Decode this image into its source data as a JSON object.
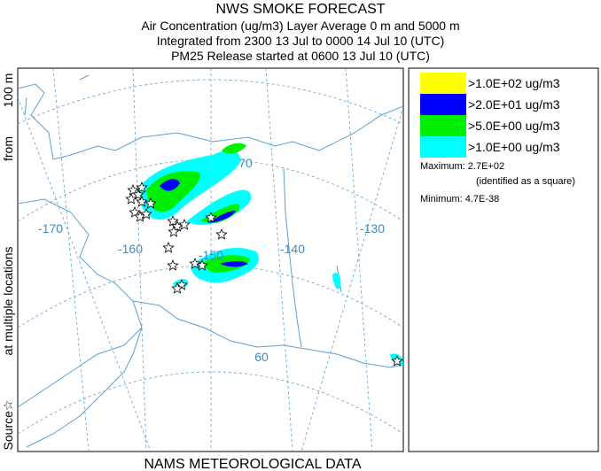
{
  "header": {
    "title": "NWS SMOKE FORECAST",
    "lines": [
      "Air Concentration (ug/m3) Layer Average    0 m and  5000 m",
      "Integrated from 2300 13 Jul to 0000 14 Jul 10 (UTC)",
      "PM25 Release started at 0600 13 Jul 10 (UTC)"
    ]
  },
  "legend": {
    "entries": [
      {
        "label": ">1.0E+02 ug/m3",
        "color": "#ffff00"
      },
      {
        "label": ">2.0E+01 ug/m3",
        "color": "#0000ff"
      },
      {
        "label": ">5.0E+00 ug/m3",
        "color": "#00ee00"
      },
      {
        "label": ">1.0E+00 ug/m3",
        "color": "#00ffff"
      }
    ]
  },
  "stats": {
    "maximum": "Maximum: 2.7E+02",
    "note": "(identified as a square)",
    "minimum": "Minimum: 4.7E-38"
  },
  "side_label": [
    "Source☆",
    "at multiple locations",
    "from",
    "100 m"
  ],
  "map": {
    "labels": [
      "-170",
      "-160",
      "-150",
      "-140",
      "-130",
      "70",
      "60"
    ]
  },
  "footer": "NAMS METEOROLOGICAL DATA"
}
